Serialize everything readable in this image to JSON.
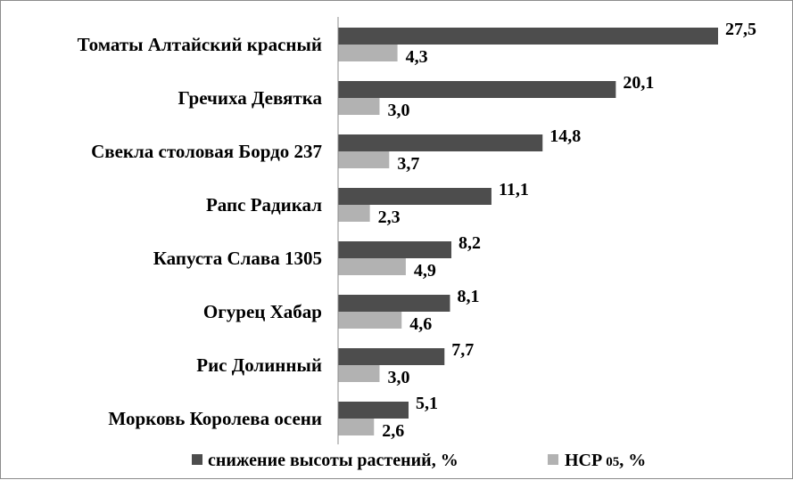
{
  "chart_data": {
    "type": "bar",
    "orientation": "horizontal",
    "categories": [
      "Томаты Алтайский красный",
      "Гречиха Девятка",
      "Свекла столовая Бордо 237",
      "Рапс Радикал",
      "Капуста Слава 1305",
      "Огурец Хабар",
      "Рис Долинный",
      "Морковь Королева осени"
    ],
    "series": [
      {
        "name": "снижение высоты растений, %",
        "color": "#4d4d4d",
        "values": [
          27.5,
          20.1,
          14.8,
          11.1,
          8.2,
          8.1,
          7.7,
          5.1
        ],
        "labels": [
          "27,5",
          "20,1",
          "14,8",
          "11,1",
          "8,2",
          "8,1",
          "7,7",
          "5,1"
        ]
      },
      {
        "name_main": "НСР",
        "name_sub": "05",
        "name_unit": ", %",
        "color": "#b2b2b2",
        "values": [
          4.3,
          3.0,
          3.7,
          2.3,
          4.9,
          4.6,
          3.0,
          2.6
        ],
        "labels": [
          "4,3",
          "3,0",
          "3,7",
          "2,3",
          "4,9",
          "4,6",
          "3,0",
          "2,6"
        ]
      }
    ],
    "xlim": [
      0,
      27.5
    ],
    "grid": false,
    "legend_position": "bottom",
    "title": "",
    "xlabel": "",
    "ylabel": ""
  }
}
